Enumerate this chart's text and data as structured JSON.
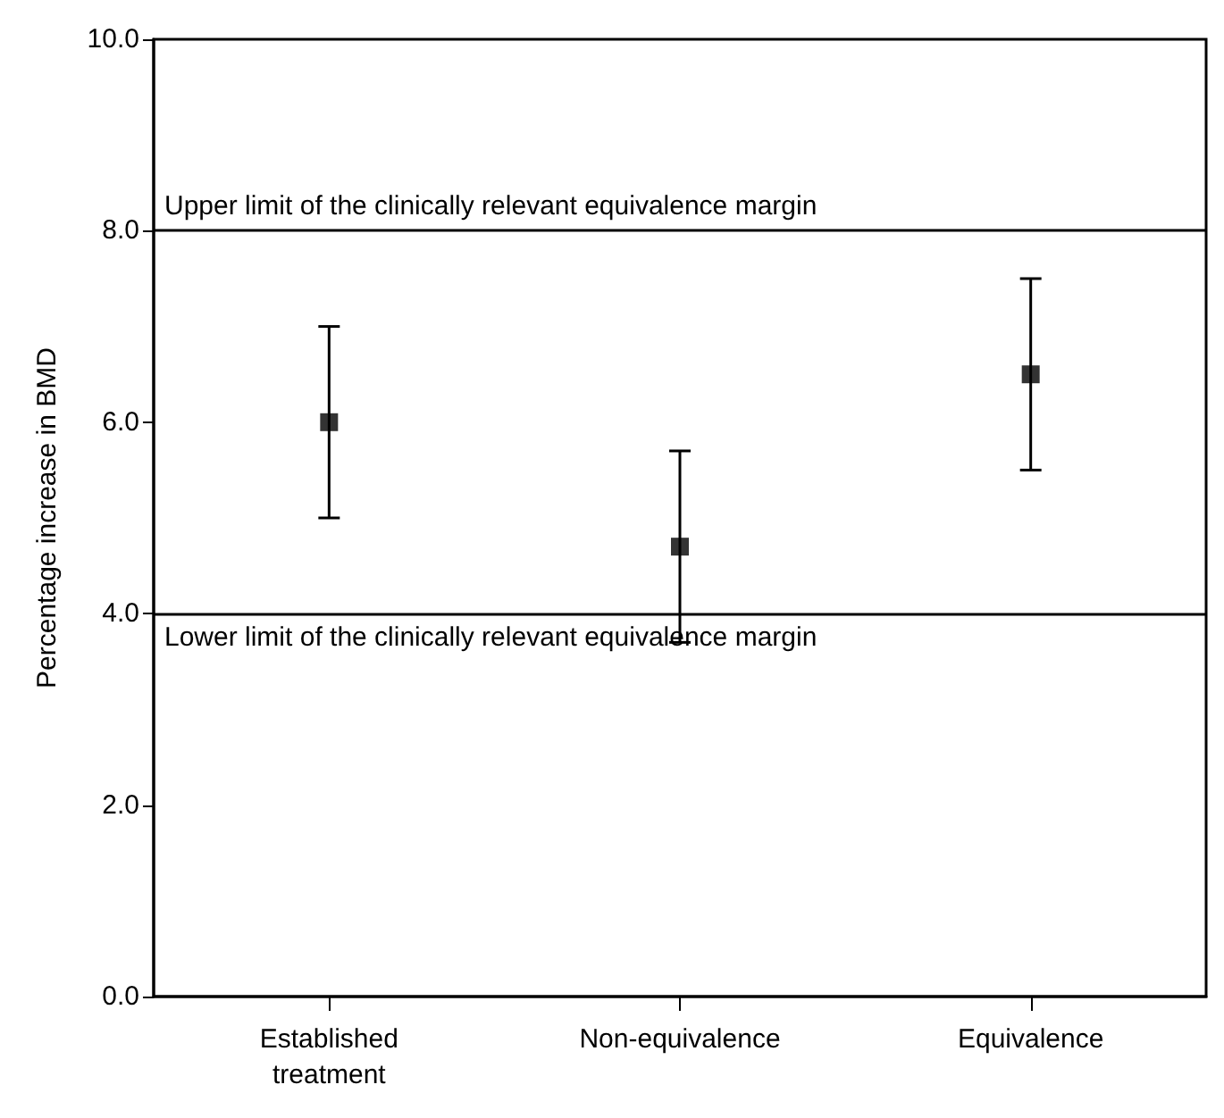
{
  "chart_data": {
    "type": "scatter",
    "ylabel": "Percentage increase in BMD",
    "categories": [
      "Established\ntreatment",
      "Non-equivalence",
      "Equivalence"
    ],
    "values": [
      6.0,
      4.7,
      6.5
    ],
    "errors": [
      1.0,
      1.0,
      1.0
    ],
    "color": "#000000",
    "marker": "square",
    "ylim": [
      0,
      10
    ],
    "yticks": [
      {
        "value": 0,
        "label": "0.0"
      },
      {
        "value": 2,
        "label": "2.0"
      },
      {
        "value": 4,
        "label": "4.0"
      },
      {
        "value": 6,
        "label": "6.0"
      },
      {
        "value": 8,
        "label": "8.0"
      },
      {
        "value": 10,
        "label": "10.0"
      }
    ],
    "ref_lines": [
      {
        "axis": "y",
        "value": 8,
        "label": "Upper limit of the clinically relevant equivalence margin",
        "color": "#000000"
      },
      {
        "axis": "y",
        "value": 4,
        "label": "Lower limit of the clinically relevant equivalence margin",
        "color": "#000000"
      }
    ],
    "grid": false
  }
}
